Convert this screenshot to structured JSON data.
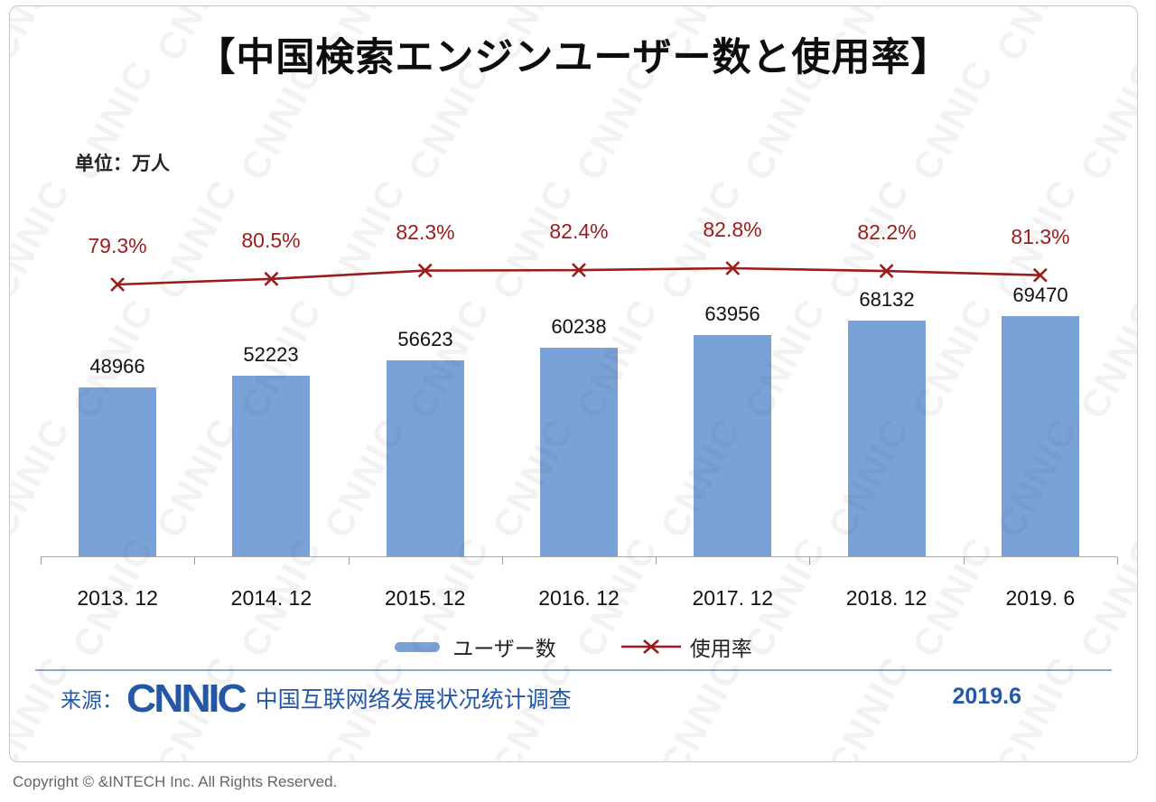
{
  "title": "【中国検索エンジンユーザー数と使用率】",
  "unit_label": "单位：万人",
  "chart_data": {
    "type": "bar",
    "title": "【中国検索エンジンユーザー数と使用率】",
    "ylabel": "单位：万人",
    "categories": [
      "2013. 12",
      "2014. 12",
      "2015. 12",
      "2016. 12",
      "2017. 12",
      "2018. 12",
      "2019. 6"
    ],
    "series": [
      {
        "name": "ユーザー数",
        "type": "bar",
        "values": [
          48966,
          52223,
          56623,
          60238,
          63956,
          68132,
          69470
        ]
      },
      {
        "name": "使用率",
        "type": "line",
        "unit": "%",
        "values": [
          79.3,
          80.5,
          82.3,
          82.4,
          82.8,
          82.2,
          81.3
        ]
      }
    ],
    "legend_position": "bottom",
    "grid": false
  },
  "source": {
    "prefix": "来源：",
    "logo": "CNNIC",
    "text": "中国互联网络发展状况统计调查",
    "date": "2019.6"
  },
  "watermark": "CNNIC",
  "copyright": "Copyright ©  &INTECH Inc. All Rights Reserved.",
  "colors": {
    "bar": "#7BA2D8",
    "line": "#9E1B1B",
    "accent_blue": "#2458A6"
  }
}
